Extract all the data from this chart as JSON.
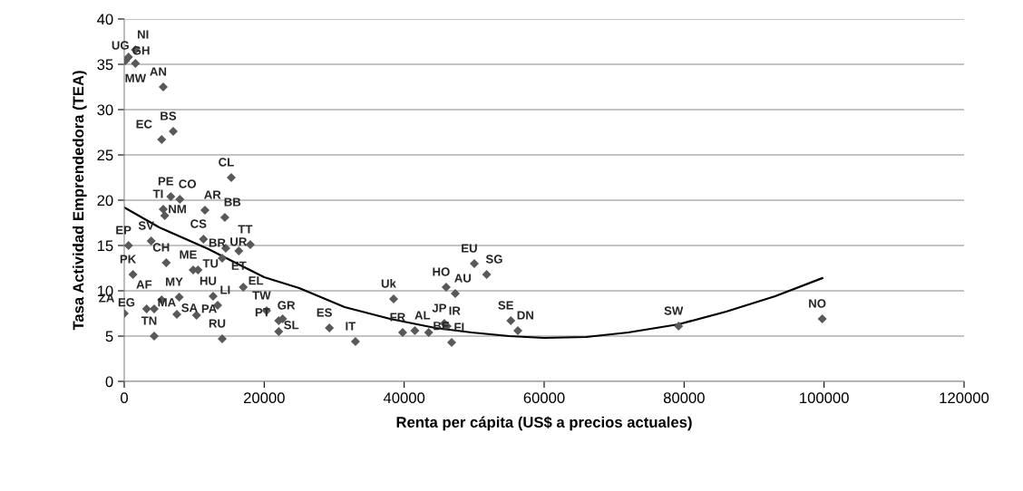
{
  "chart_data": {
    "type": "scatter",
    "xlabel": "Renta per cápita (US$ a precios actuales)",
    "ylabel": "Tasa Actividad Emprendedora (TEA)",
    "xlim": [
      0,
      120000
    ],
    "xticks": [
      0,
      20000,
      40000,
      60000,
      80000,
      100000,
      120000
    ],
    "ylim": [
      0,
      40
    ],
    "yticks": [
      0,
      5,
      10,
      15,
      20,
      25,
      30,
      35,
      40
    ],
    "grid": "y",
    "series": [
      {
        "color": "#595959",
        "marker": "diamond",
        "x": [
          170,
          610,
          1600,
          1600,
          5570,
          7000,
          5350,
          15290,
          6650,
          7950,
          5570,
          5790,
          11530,
          14380,
          3850,
          610,
          11320,
          14000,
          14510,
          16370,
          18010,
          6000,
          9850,
          10540,
          1250,
          17010,
          12700,
          13350,
          7850,
          5350,
          4280,
          3200,
          0,
          4280,
          7520,
          10330,
          14000,
          20340,
          22070,
          22630,
          22070,
          29310,
          33040,
          38490,
          39780,
          41530,
          43500,
          45740,
          46130,
          46780,
          46000,
          47300,
          50020,
          51790,
          55240,
          56240,
          79210,
          99740
        ],
        "values": [
          35.4,
          35.8,
          36.6,
          35.1,
          32.5,
          27.6,
          26.7,
          22.5,
          20.4,
          20.1,
          19.0,
          18.3,
          18.9,
          18.1,
          15.5,
          15.0,
          15.7,
          13.6,
          14.7,
          14.4,
          15.1,
          13.1,
          12.3,
          12.3,
          11.8,
          10.4,
          9.4,
          8.4,
          9.3,
          9.0,
          8.0,
          8.0,
          7.5,
          5.0,
          7.4,
          7.3,
          4.7,
          7.8,
          6.7,
          6.9,
          5.5,
          5.9,
          4.4,
          9.1,
          5.4,
          5.6,
          5.4,
          6.4,
          6.1,
          4.3,
          10.4,
          9.7,
          13.0,
          11.8,
          6.7,
          5.6,
          6.1,
          6.9
        ],
        "value_labels": [
          "UG",
          "GH",
          "NI",
          "MW",
          "AN",
          "BS",
          "EC",
          "CL",
          "PE",
          "CO",
          "TI",
          "NM",
          "AR",
          "BB",
          "SV",
          "EP",
          "CS",
          "BR",
          "UR",
          "ET",
          "TT",
          "CH",
          "ME",
          "TU",
          "PK",
          "EL",
          "HU",
          "LI",
          "MY",
          "AF",
          "MA",
          "EG",
          "ZA",
          "TN",
          "SA",
          "PA",
          "RU",
          "TW",
          "GR",
          "PT",
          "SL",
          "ES",
          "IT",
          "Uk",
          "FR",
          "AL",
          "BE",
          "JP",
          "IR",
          "FI",
          "HO",
          "AU",
          "EU",
          "SG",
          "SE",
          "DN",
          "SW",
          "NO"
        ]
      },
      {
        "type": "line",
        "color": "#000000",
        "line_style": "solid",
        "marker": "none",
        "x": [
          0,
          5000,
          12050,
          20000,
          25000,
          31490,
          38000,
          44450,
          49630,
          55000,
          60000,
          66000,
          72000,
          79200,
          86000,
          93000,
          99740
        ],
        "values": [
          19.2,
          17.0,
          14.6,
          11.5,
          10.3,
          8.2,
          6.9,
          5.9,
          5.4,
          5.0,
          4.8,
          4.9,
          5.4,
          6.3,
          7.7,
          9.4,
          11.4
        ]
      }
    ]
  }
}
